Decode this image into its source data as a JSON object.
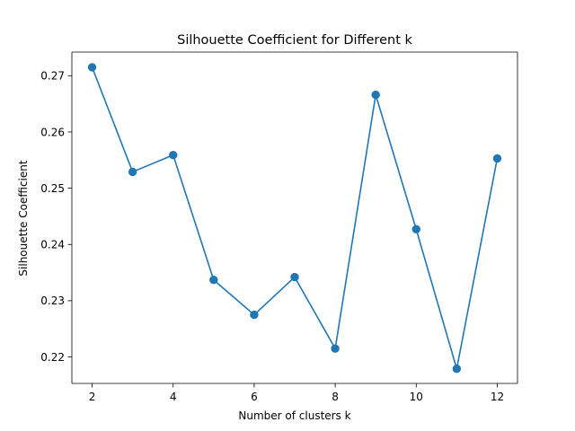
{
  "chart_data": {
    "type": "line",
    "title": "Silhouette Coefficient for Different k",
    "xlabel": "Number of clusters k",
    "ylabel": "Silhouette Coefficient",
    "x": [
      2,
      3,
      4,
      5,
      6,
      7,
      8,
      9,
      10,
      11,
      12
    ],
    "series": [
      {
        "values": [
          0.2715,
          0.2529,
          0.2559,
          0.2337,
          0.2275,
          0.2342,
          0.2215,
          0.2666,
          0.2427,
          0.2179,
          0.2553
        ],
        "color": "#1f77b4",
        "marker": "circle"
      }
    ],
    "xticks": [
      2,
      4,
      6,
      8,
      10,
      12
    ],
    "xtick_labels": [
      "2",
      "4",
      "6",
      "8",
      "10",
      "12"
    ],
    "yticks": [
      0.22,
      0.23,
      0.24,
      0.25,
      0.26,
      0.27
    ],
    "ytick_labels": [
      "0.22",
      "0.23",
      "0.24",
      "0.25",
      "0.26",
      "0.27"
    ],
    "xlim": [
      1.5,
      12.5
    ],
    "ylim": [
      0.2153,
      0.2742
    ],
    "grid": false,
    "legend": "none"
  }
}
